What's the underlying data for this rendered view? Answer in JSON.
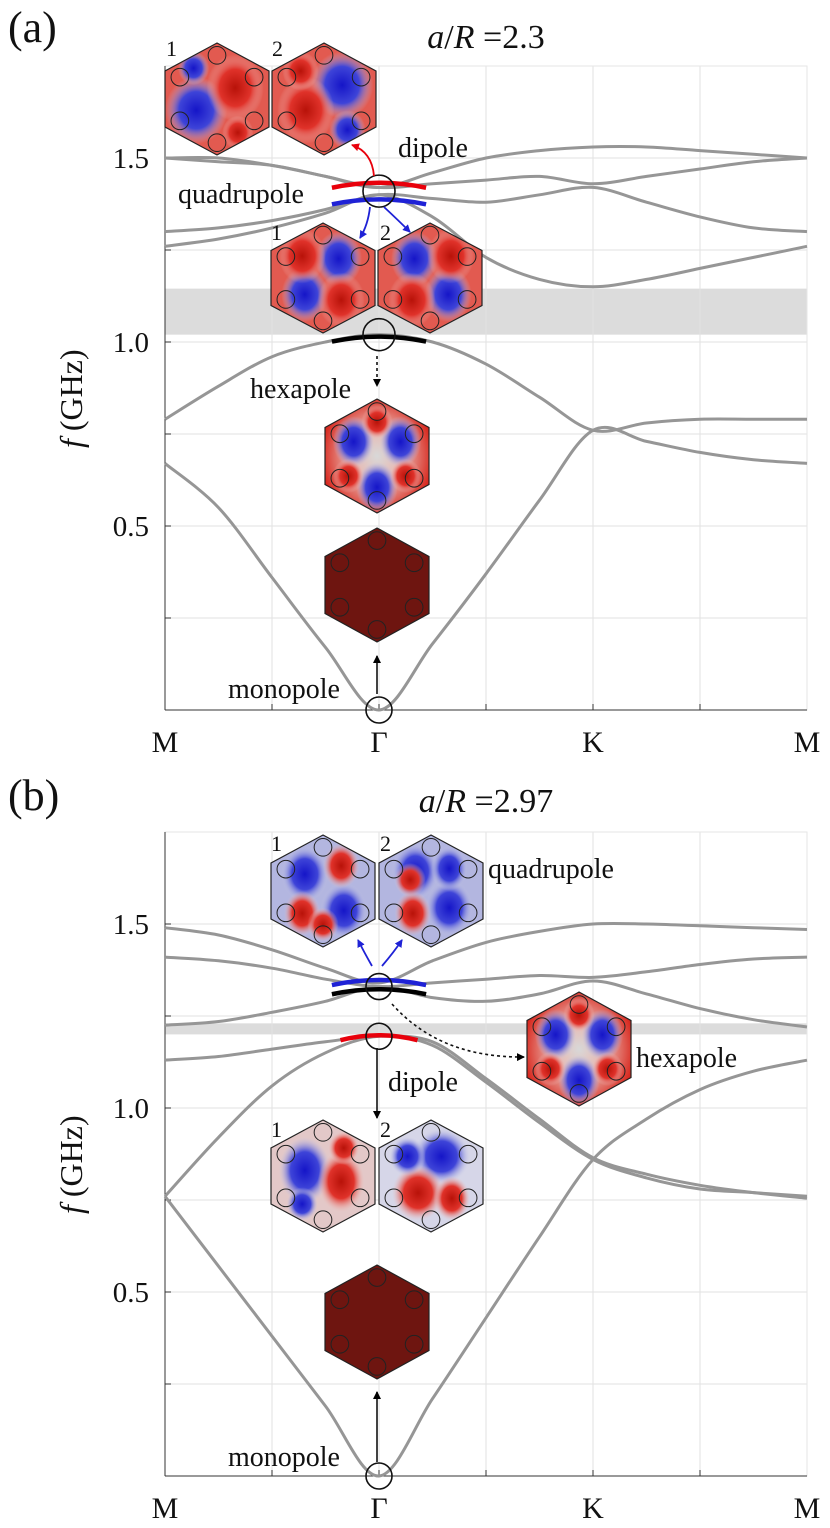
{
  "chart_data": [
    {
      "panel_label": "(a)",
      "title": "a/R =2.3",
      "title_parts": {
        "a": "a",
        "slash": "/",
        "r": "R",
        "eq": " =2.3"
      },
      "type": "line",
      "ylabel": "f (GHz)",
      "ylabel_parts": {
        "f": "f",
        "unit": " (GHz)"
      },
      "ylim": [
        0,
        1.75
      ],
      "xlim": [
        0,
        3
      ],
      "x_ticks": [
        {
          "pos": 0,
          "label": "M"
        },
        {
          "pos": 1,
          "label": "Γ"
        },
        {
          "pos": 2,
          "label": "K"
        },
        {
          "pos": 3,
          "label": "M"
        }
      ],
      "y_ticks": [
        0.5,
        1.0,
        1.5
      ],
      "y_tick_labels": [
        "0.5",
        "1.0",
        "1.5"
      ],
      "grid": true,
      "band_gap": [
        1.02,
        1.145
      ],
      "series": [
        {
          "x": [
            0,
            0.25,
            0.5,
            0.75,
            1,
            1.25,
            1.5,
            1.75,
            2,
            2.25,
            2.5,
            2.75,
            3
          ],
          "values": [
            0.67,
            0.55,
            0.36,
            0.17,
            0,
            0.18,
            0.37,
            0.57,
            0.76,
            0.73,
            0.7,
            0.68,
            0.67
          ]
        },
        {
          "x": [
            0,
            0.25,
            0.5,
            0.75,
            1,
            1.25,
            1.5,
            1.75,
            2,
            2.25,
            2.5,
            2.75,
            3
          ],
          "values": [
            0.79,
            0.88,
            0.96,
            1.0,
            1.02,
            1.0,
            0.94,
            0.85,
            0.76,
            0.78,
            0.79,
            0.79,
            0.79
          ]
        },
        {
          "x": [
            0,
            0.25,
            0.5,
            0.75,
            1,
            1.25,
            1.5,
            1.75,
            2,
            2.25,
            2.5,
            2.75,
            3
          ],
          "values": [
            1.26,
            1.28,
            1.31,
            1.35,
            1.4,
            1.34,
            1.23,
            1.17,
            1.15,
            1.17,
            1.2,
            1.23,
            1.26
          ]
        },
        {
          "x": [
            0,
            0.25,
            0.5,
            0.75,
            1,
            1.25,
            1.5,
            1.75,
            2,
            2.25,
            2.5,
            2.75,
            3
          ],
          "values": [
            1.3,
            1.31,
            1.33,
            1.36,
            1.4,
            1.39,
            1.38,
            1.4,
            1.42,
            1.38,
            1.34,
            1.31,
            1.3
          ]
        },
        {
          "x": [
            0,
            0.25,
            0.5,
            0.75,
            1,
            1.25,
            1.5,
            1.75,
            2,
            2.25,
            2.5,
            2.75,
            3
          ],
          "values": [
            1.5,
            1.49,
            1.48,
            1.45,
            1.42,
            1.43,
            1.44,
            1.45,
            1.43,
            1.45,
            1.47,
            1.49,
            1.5
          ]
        },
        {
          "x": [
            0,
            0.25,
            0.5,
            0.75,
            1,
            1.25,
            1.5,
            1.75,
            2,
            2.25,
            2.5,
            2.75,
            3
          ],
          "values": [
            1.5,
            1.5,
            1.48,
            1.45,
            1.42,
            1.46,
            1.5,
            1.52,
            1.53,
            1.53,
            1.52,
            1.51,
            1.5
          ]
        }
      ],
      "highlights": [
        {
          "color": "#e8000b",
          "x": [
            0.78,
            1.22
          ],
          "values": [
            1.43,
            1.43
          ]
        },
        {
          "color": "#1f22d6",
          "x": [
            0.78,
            1.22
          ],
          "values": [
            1.385,
            1.385
          ]
        },
        {
          "color": "#000000",
          "x": [
            0.78,
            1.22
          ],
          "values": [
            1.012,
            1.012
          ]
        }
      ],
      "mode_circles": [
        [
          1,
          1.41
        ],
        [
          1,
          1.02
        ],
        [
          1,
          0.0
        ]
      ],
      "annotations": [
        "1",
        "2",
        "dipole",
        "quadrupole",
        "1",
        "2",
        "hexapole",
        "monopole"
      ]
    },
    {
      "panel_label": "(b)",
      "title": "a/R =2.97",
      "title_parts": {
        "a": "a",
        "slash": "/",
        "r": "R",
        "eq": " =2.97"
      },
      "type": "line",
      "ylabel": "f (GHz)",
      "ylabel_parts": {
        "f": "f",
        "unit": " (GHz)"
      },
      "ylim": [
        0,
        1.75
      ],
      "xlim": [
        0,
        3
      ],
      "x_ticks": [
        {
          "pos": 0,
          "label": "M"
        },
        {
          "pos": 1,
          "label": "Γ"
        },
        {
          "pos": 2,
          "label": "K"
        },
        {
          "pos": 3,
          "label": "M"
        }
      ],
      "y_ticks": [
        0.5,
        1.0,
        1.5
      ],
      "y_tick_labels": [
        "0.5",
        "1.0",
        "1.5"
      ],
      "grid": true,
      "band_gap": [
        1.2,
        1.23
      ],
      "series": [
        {
          "x": [
            0,
            0.25,
            0.5,
            0.75,
            1,
            1.25,
            1.5,
            1.75,
            2,
            2.25,
            2.5,
            2.75,
            3
          ],
          "values": [
            0.76,
            0.57,
            0.38,
            0.19,
            0,
            0.21,
            0.43,
            0.65,
            0.86,
            0.97,
            1.05,
            1.1,
            1.13
          ]
        },
        {
          "x": [
            0,
            0.25,
            0.5,
            0.75,
            1,
            1.25,
            1.5,
            1.75,
            2,
            2.25,
            2.5,
            2.75,
            3
          ],
          "values": [
            0.76,
            0.92,
            1.06,
            1.15,
            1.195,
            1.17,
            1.07,
            0.96,
            0.86,
            0.81,
            0.78,
            0.77,
            0.76
          ]
        },
        {
          "x": [
            0,
            0.25,
            0.5,
            0.75,
            1,
            1.25,
            1.5,
            1.75,
            2,
            2.25,
            2.5,
            2.75,
            3
          ],
          "values": [
            1.13,
            1.14,
            1.16,
            1.18,
            1.195,
            1.18,
            1.08,
            0.97,
            0.865,
            0.82,
            0.79,
            0.77,
            0.755
          ]
        },
        {
          "x": [
            0,
            0.25,
            0.5,
            0.75,
            1,
            1.25,
            1.5,
            1.75,
            2,
            2.25,
            2.5,
            2.75,
            3
          ],
          "values": [
            1.225,
            1.235,
            1.26,
            1.29,
            1.33,
            1.3,
            1.29,
            1.31,
            1.345,
            1.31,
            1.27,
            1.24,
            1.22
          ]
        },
        {
          "x": [
            0,
            0.25,
            0.5,
            0.75,
            1,
            1.25,
            1.5,
            1.75,
            2,
            2.25,
            2.5,
            2.75,
            3
          ],
          "values": [
            1.41,
            1.4,
            1.38,
            1.35,
            1.33,
            1.34,
            1.35,
            1.36,
            1.355,
            1.37,
            1.39,
            1.405,
            1.41
          ]
        },
        {
          "x": [
            0,
            0.25,
            0.5,
            0.75,
            1,
            1.25,
            1.5,
            1.75,
            2,
            2.25,
            2.5,
            2.75,
            3
          ],
          "values": [
            1.49,
            1.47,
            1.43,
            1.38,
            1.34,
            1.4,
            1.45,
            1.48,
            1.5,
            1.5,
            1.495,
            1.49,
            1.485
          ]
        }
      ],
      "highlights": [
        {
          "color": "#e8000b",
          "x": [
            0.82,
            1.18
          ],
          "values": [
            1.195,
            1.195
          ]
        },
        {
          "color": "#000000",
          "x": [
            0.78,
            1.22
          ],
          "values": [
            1.32,
            1.32
          ]
        },
        {
          "color": "#1f22d6",
          "x": [
            0.78,
            1.22
          ],
          "values": [
            1.345,
            1.345
          ]
        }
      ],
      "mode_circles": [
        [
          1,
          1.33
        ],
        [
          1,
          1.195
        ],
        [
          1,
          0.0
        ]
      ],
      "annotations": [
        "1",
        "2",
        "quadrupole",
        "hexapole",
        "dipole",
        "1",
        "2",
        "monopole"
      ]
    }
  ],
  "colors": {
    "band_line": "#969696",
    "grid": "#e2e2e2",
    "gap": "#dcdcdc",
    "red": "#e8000b",
    "blue": "#1f22d6",
    "dark_red": "#6e1510"
  }
}
